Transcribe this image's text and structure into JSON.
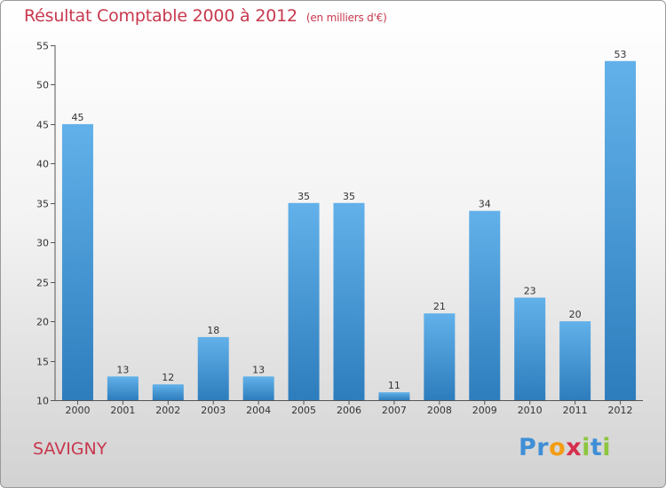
{
  "header": {
    "title": "Résultat Comptable 2000 à 2012",
    "subtitle": "(en milliers d'€)"
  },
  "footer": {
    "commune": "SAVIGNY",
    "brand": [
      "P",
      "r",
      "o",
      "x",
      "i",
      "t",
      "i"
    ]
  },
  "colors": {
    "title": "#c8384e",
    "bar_top": "#62b1ea",
    "bar_bottom": "#2d7dbd",
    "brand": [
      "#3f8fd6",
      "#3f8fd6",
      "#f39c12",
      "#d62f4d",
      "#8dc63f",
      "#3f8fd6",
      "#8dc63f"
    ]
  },
  "chart_data": {
    "type": "bar",
    "title": "Résultat Comptable 2000 à 2012",
    "subtitle": "(en milliers d'€)",
    "categories": [
      "2000",
      "2001",
      "2002",
      "2003",
      "2004",
      "2005",
      "2006",
      "2007",
      "2008",
      "2009",
      "2010",
      "2011",
      "2012"
    ],
    "values": [
      45,
      13,
      12,
      18,
      13,
      35,
      35,
      11,
      21,
      34,
      23,
      20,
      53
    ],
    "ylim": [
      10,
      55
    ],
    "yticks": [
      10,
      15,
      20,
      25,
      30,
      35,
      40,
      45,
      50,
      55
    ],
    "xlabel": "",
    "ylabel": "",
    "grid": false,
    "data_labels": true
  }
}
